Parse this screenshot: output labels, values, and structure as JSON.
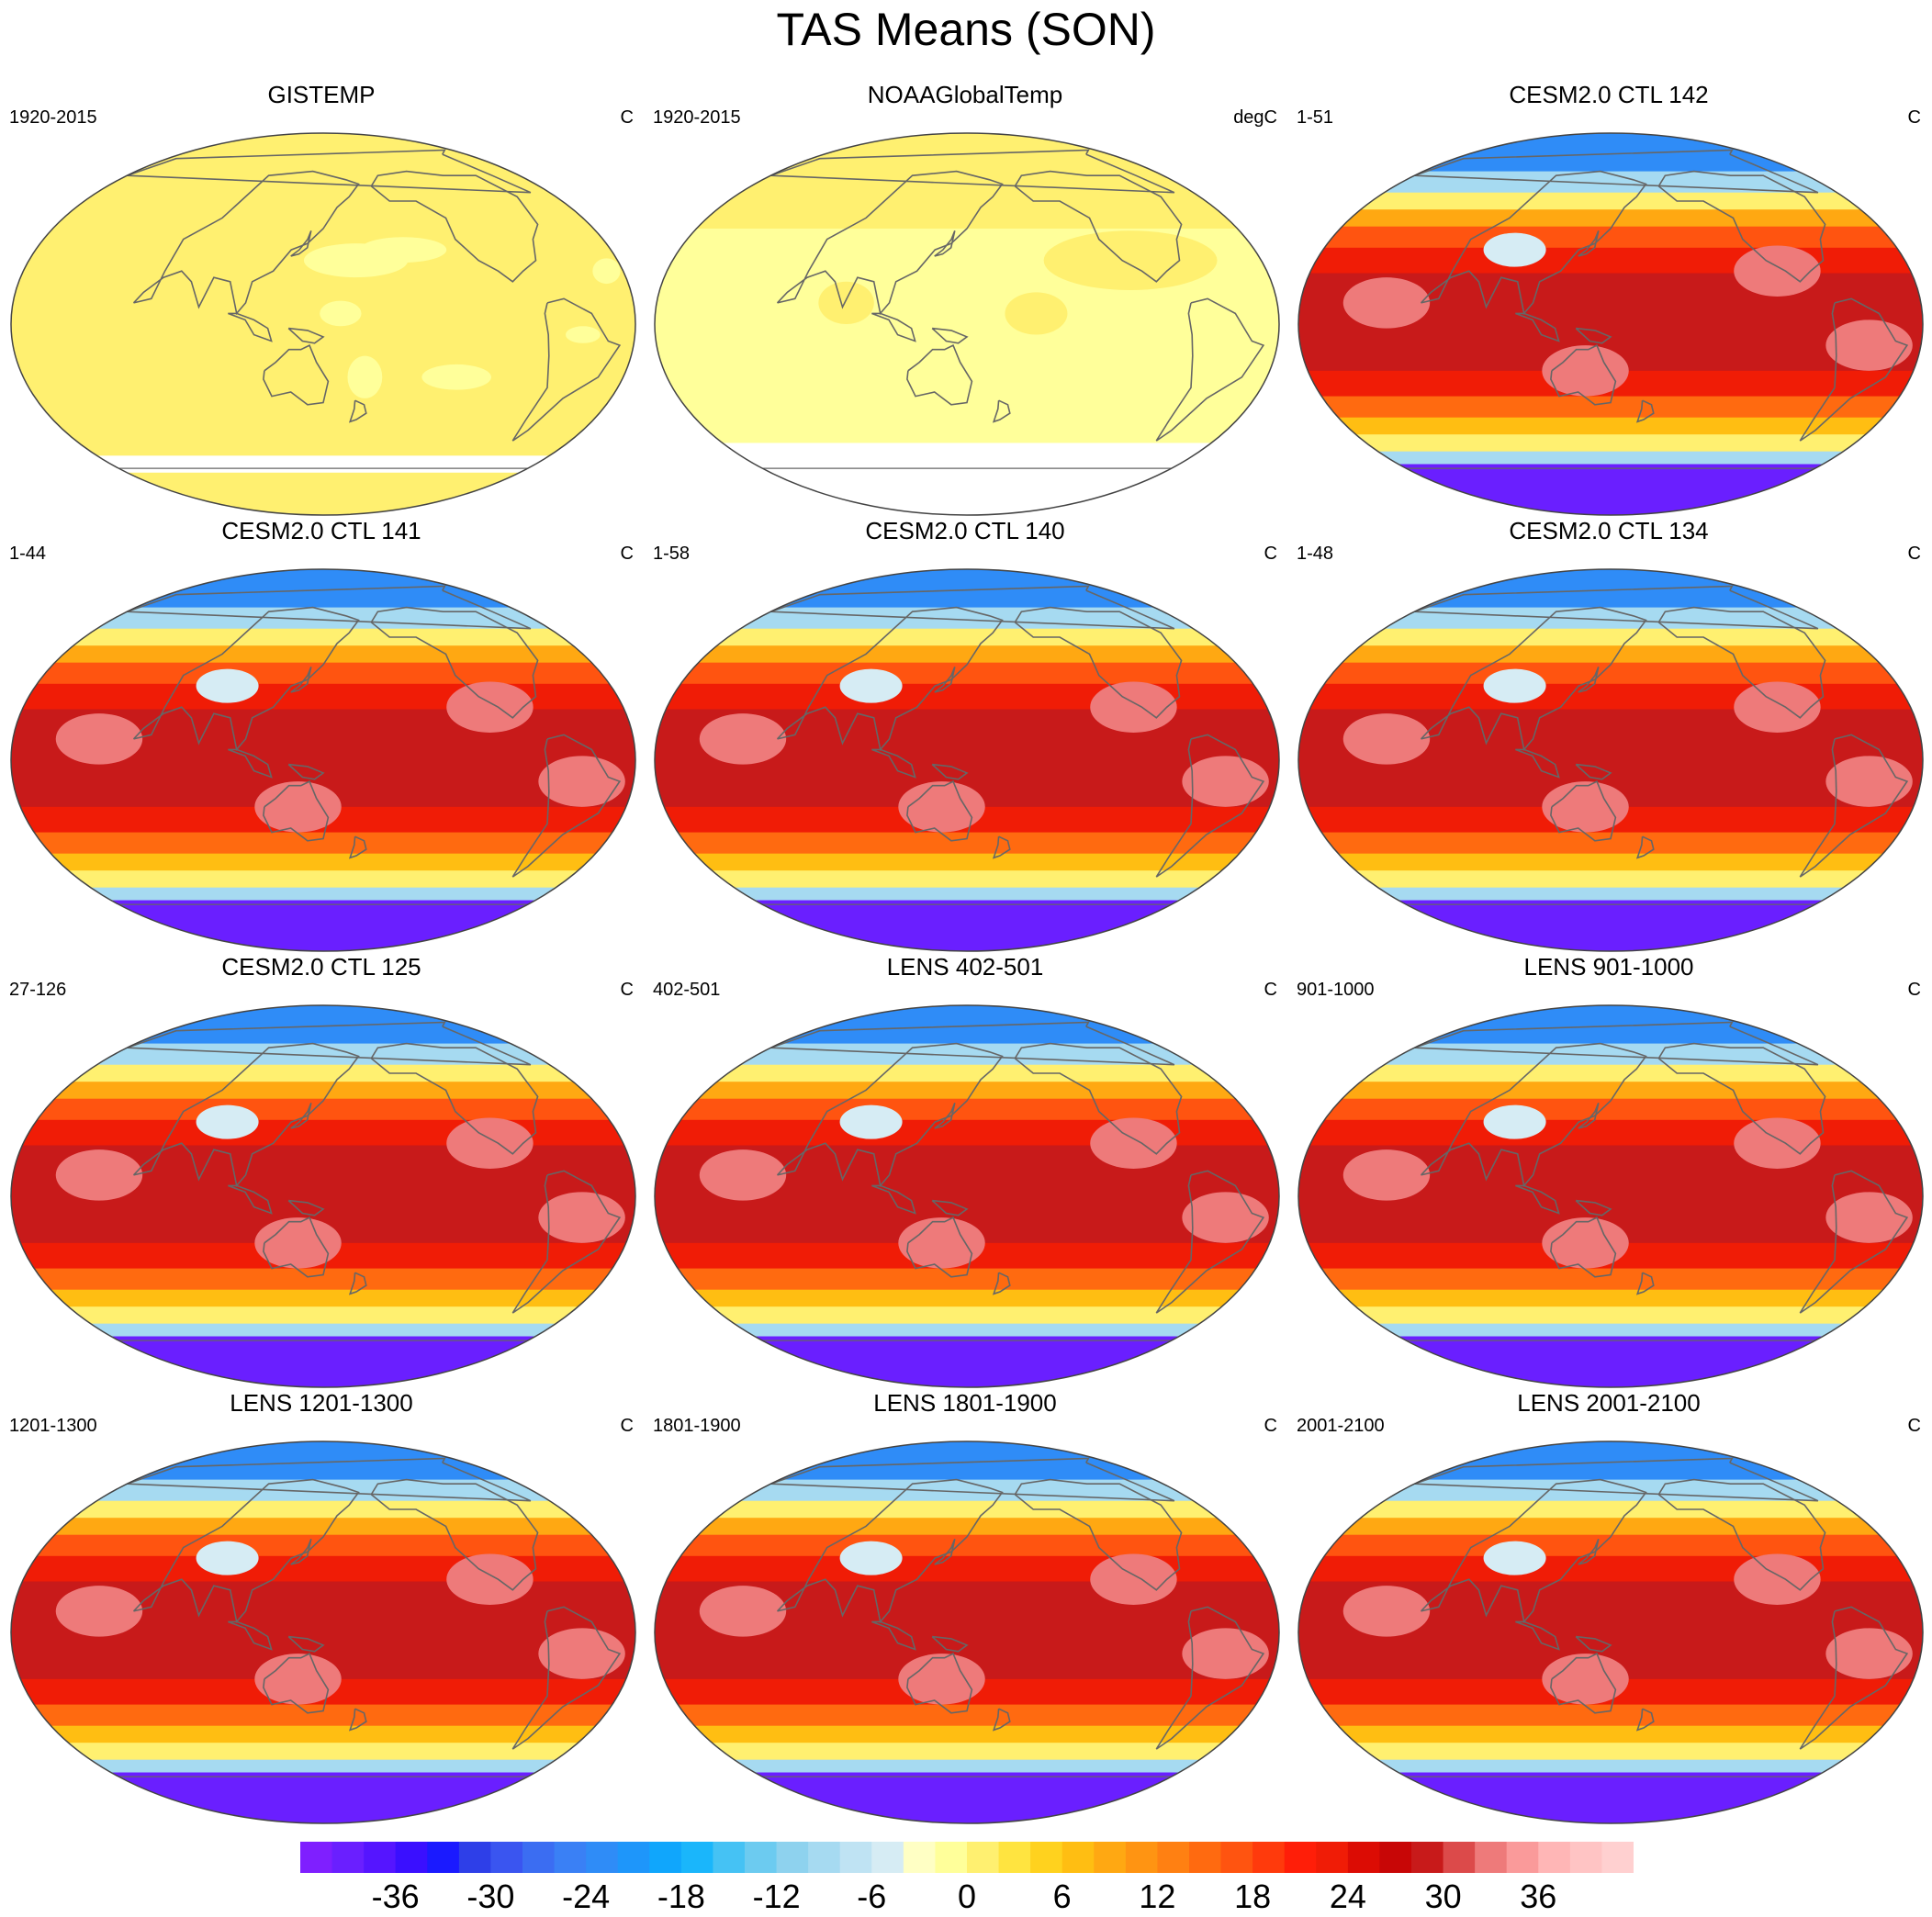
{
  "title": "TAS Means (SON)",
  "panels": [
    {
      "title": "GISTEMP",
      "left": "1920-2015",
      "right": "C",
      "style": "obs1"
    },
    {
      "title": "NOAAGlobalTemp",
      "left": "1920-2015",
      "right": "degC",
      "style": "obs2"
    },
    {
      "title": "CESM2.0 CTL 142",
      "left": "1-51",
      "right": "C",
      "style": "model"
    },
    {
      "title": "CESM2.0 CTL 141",
      "left": "1-44",
      "right": "C",
      "style": "model"
    },
    {
      "title": "CESM2.0 CTL 140",
      "left": "1-58",
      "right": "C",
      "style": "model"
    },
    {
      "title": "CESM2.0 CTL 134",
      "left": "1-48",
      "right": "C",
      "style": "model"
    },
    {
      "title": "CESM2.0 CTL 125",
      "left": "27-126",
      "right": "C",
      "style": "model"
    },
    {
      "title": "LENS 402-501",
      "left": "402-501",
      "right": "C",
      "style": "model"
    },
    {
      "title": "LENS 901-1000",
      "left": "901-1000",
      "right": "C",
      "style": "model"
    },
    {
      "title": "LENS 1201-1300",
      "left": "1201-1300",
      "right": "C",
      "style": "model"
    },
    {
      "title": "LENS 1801-1900",
      "left": "1801-1900",
      "right": "C",
      "style": "model"
    },
    {
      "title": "LENS 2001-2100",
      "left": "2001-2100",
      "right": "C",
      "style": "model"
    }
  ],
  "colorbar": {
    "ticks": [
      "-36",
      "-30",
      "-24",
      "-18",
      "-12",
      "-6",
      "0",
      "6",
      "12",
      "18",
      "24",
      "30",
      "36"
    ],
    "tick_values": [
      -36,
      -30,
      -24,
      -18,
      -12,
      -6,
      0,
      6,
      12,
      18,
      24,
      30,
      36
    ],
    "min": -42,
    "max": 42,
    "step": 2,
    "colors": [
      "#7f1fff",
      "#6a1fff",
      "#5515ff",
      "#3a0fff",
      "#1a1aff",
      "#2e3fe8",
      "#3a55f0",
      "#3b6df2",
      "#3a80f5",
      "#2f8cf7",
      "#1e96fa",
      "#10a6fc",
      "#1ab6fb",
      "#45c2f4",
      "#6ccbf0",
      "#8ed2ee",
      "#a6daf1",
      "#bfe3f3",
      "#d6ecf4",
      "#ffffc4",
      "#ffff9a",
      "#fff070",
      "#ffe440",
      "#ffd21e",
      "#ffbe12",
      "#ffa812",
      "#ff9412",
      "#ff8012",
      "#ff6a10",
      "#ff5410",
      "#ff3a0c",
      "#ff1e08",
      "#f01c06",
      "#dc0c04",
      "#c80606",
      "#c81a1a",
      "#dc4a4a",
      "#ee7a7a",
      "#fa9a9a",
      "#ffb6b6",
      "#ffc4c4",
      "#ffd0d0"
    ]
  },
  "map_legend": {
    "model_bands": [
      {
        "lat_max": 90,
        "lat_min": 72,
        "value": -24
      },
      {
        "lat_max": 72,
        "lat_min": 62,
        "value": -10
      },
      {
        "lat_max": 62,
        "lat_min": 54,
        "value": 0
      },
      {
        "lat_max": 54,
        "lat_min": 46,
        "value": 8
      },
      {
        "lat_max": 46,
        "lat_min": 36,
        "value": 16
      },
      {
        "lat_max": 36,
        "lat_min": 24,
        "value": 22
      },
      {
        "lat_max": 24,
        "lat_min": -22,
        "value": 28
      },
      {
        "lat_max": -22,
        "lat_min": -34,
        "value": 22
      },
      {
        "lat_max": -34,
        "lat_min": -44,
        "value": 14
      },
      {
        "lat_max": -44,
        "lat_min": -52,
        "value": 6
      },
      {
        "lat_max": -52,
        "lat_min": -60,
        "value": 0
      },
      {
        "lat_max": -60,
        "lat_min": -66,
        "value": -10
      },
      {
        "lat_max": -66,
        "lat_min": -90,
        "value": -40
      }
    ]
  }
}
